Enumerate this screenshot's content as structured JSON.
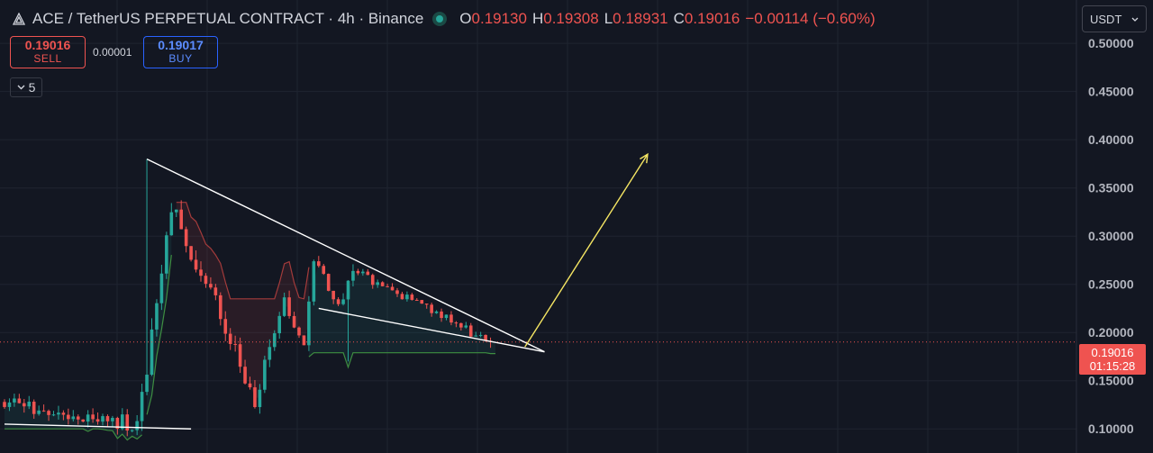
{
  "header": {
    "title": "ACE / TetherUS PERPETUAL CONTRACT · 4h · Binance",
    "ohlc": [
      {
        "key": "O",
        "value": "0.19130"
      },
      {
        "key": "H",
        "value": "0.19308"
      },
      {
        "key": "L",
        "value": "0.18931"
      },
      {
        "key": "C",
        "value": "0.19016"
      }
    ],
    "change": "−0.00114 (−0.60%)"
  },
  "trade": {
    "sell_price": "0.19016",
    "sell_label": "SELL",
    "spread": "0.00001",
    "buy_price": "0.19017",
    "buy_label": "BUY"
  },
  "indicator_toggle": {
    "count": "5"
  },
  "currency_select": {
    "value": "USDT"
  },
  "last_price": {
    "price": "0.19016",
    "countdown": "01:15:28"
  },
  "colors": {
    "up": "#26a69a",
    "down": "#ef5350",
    "background": "#131722",
    "arrow": "#f5e663",
    "trendline": "#ffffff"
  },
  "chart_data": {
    "type": "candlestick",
    "y_ticks": [
      "0.10000",
      "0.15000",
      "0.20000",
      "0.25000",
      "0.30000",
      "0.35000",
      "0.40000",
      "0.45000",
      "0.50000"
    ],
    "ylim": [
      0.075,
      0.545
    ],
    "grid": true,
    "segments": [
      {
        "from": 0,
        "to": 28,
        "start": 0.128,
        "end": 0.105,
        "vol": 0.012,
        "seed": 3
      },
      {
        "from": 28,
        "to": 35,
        "start": 0.105,
        "end": 0.33,
        "vol": 0.02,
        "seed": 7
      },
      {
        "from": 35,
        "to": 52,
        "start": 0.33,
        "end": 0.135,
        "vol": 0.018,
        "seed": 11
      },
      {
        "from": 52,
        "to": 58,
        "start": 0.135,
        "end": 0.23,
        "vol": 0.015,
        "seed": 13
      },
      {
        "from": 58,
        "to": 62,
        "start": 0.23,
        "end": 0.19,
        "vol": 0.012,
        "seed": 17
      },
      {
        "from": 62,
        "to": 64,
        "start": 0.19,
        "end": 0.275,
        "vol": 0.015,
        "seed": 19
      },
      {
        "from": 64,
        "to": 69,
        "start": 0.275,
        "end": 0.225,
        "vol": 0.01,
        "seed": 23
      },
      {
        "from": 69,
        "to": 72,
        "start": 0.225,
        "end": 0.265,
        "vol": 0.012,
        "seed": 29
      },
      {
        "from": 72,
        "to": 100,
        "start": 0.265,
        "end": 0.19,
        "vol": 0.007,
        "seed": 31
      }
    ],
    "spikes": [
      {
        "index": 29,
        "high": 0.38
      },
      {
        "index": 70,
        "low": 0.17
      }
    ],
    "drawings": {
      "trendlines": [
        {
          "from": [
            29,
            0.38
          ],
          "to": [
            110,
            0.18
          ]
        },
        {
          "from": [
            64,
            0.225
          ],
          "to": [
            110,
            0.18
          ]
        },
        {
          "from": [
            0,
            0.105
          ],
          "to": [
            38,
            0.1
          ]
        }
      ],
      "arrow": {
        "from": [
          106,
          0.185
        ],
        "to": [
          131,
          0.385
        ]
      }
    }
  }
}
